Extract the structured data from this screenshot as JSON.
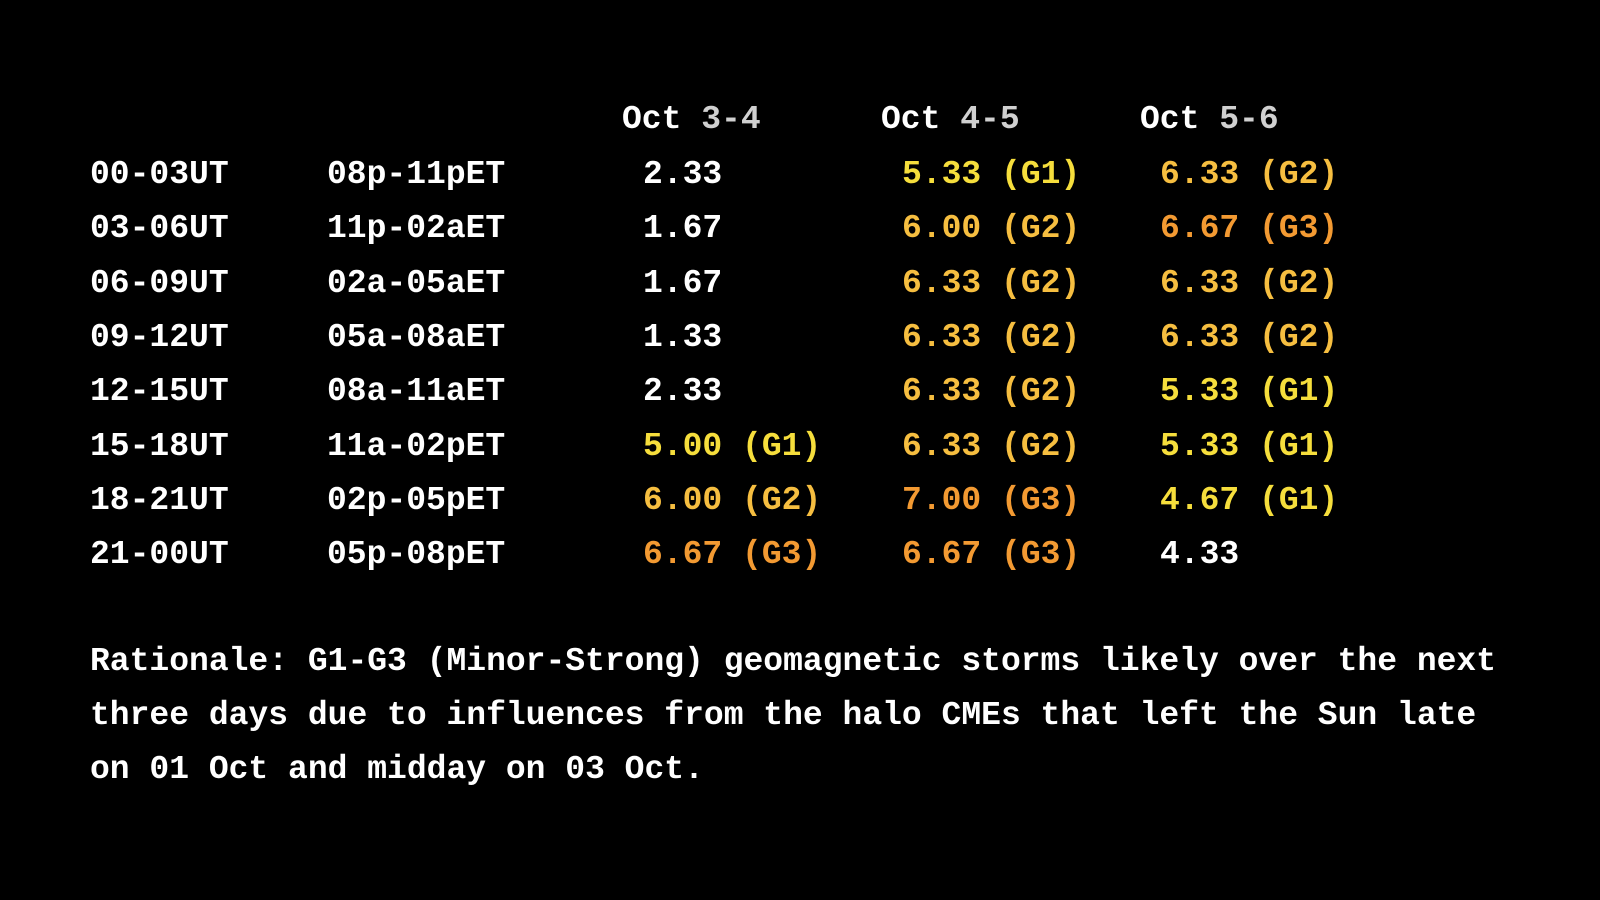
{
  "table": {
    "header": [
      {
        "month": "Oct",
        "days": "3-4"
      },
      {
        "month": "Oct",
        "days": "4-5"
      },
      {
        "month": "Oct",
        "days": "5-6"
      }
    ],
    "level_colors": {
      "none": "#ffffff",
      "G1": "#f6de3c",
      "G2": "#f6be40",
      "G3": "#f39a32"
    },
    "rows": [
      {
        "ut": "00-03UT",
        "et": "08p-11pET",
        "cells": [
          {
            "value": "2.33"
          },
          {
            "value": "5.33",
            "level": "G1",
            "label": "(G1)"
          },
          {
            "value": "6.33",
            "level": "G2",
            "label": "(G2)"
          }
        ]
      },
      {
        "ut": "03-06UT",
        "et": "11p-02aET",
        "cells": [
          {
            "value": "1.67"
          },
          {
            "value": "6.00",
            "level": "G2",
            "label": "(G2)"
          },
          {
            "value": "6.67",
            "level": "G3",
            "label": "(G3)"
          }
        ]
      },
      {
        "ut": "06-09UT",
        "et": "02a-05aET",
        "cells": [
          {
            "value": "1.67"
          },
          {
            "value": "6.33",
            "level": "G2",
            "label": "(G2)"
          },
          {
            "value": "6.33",
            "level": "G2",
            "label": "(G2)"
          }
        ]
      },
      {
        "ut": "09-12UT",
        "et": "05a-08aET",
        "cells": [
          {
            "value": "1.33"
          },
          {
            "value": "6.33",
            "level": "G2",
            "label": "(G2)"
          },
          {
            "value": "6.33",
            "level": "G2",
            "label": "(G2)"
          }
        ]
      },
      {
        "ut": "12-15UT",
        "et": "08a-11aET",
        "cells": [
          {
            "value": "2.33"
          },
          {
            "value": "6.33",
            "level": "G2",
            "label": "(G2)"
          },
          {
            "value": "5.33",
            "level": "G1",
            "label": "(G1)"
          }
        ]
      },
      {
        "ut": "15-18UT",
        "et": "11a-02pET",
        "cells": [
          {
            "value": "5.00",
            "level": "G1",
            "label": "(G1)"
          },
          {
            "value": "6.33",
            "level": "G2",
            "label": "(G2)"
          },
          {
            "value": "5.33",
            "level": "G1",
            "label": "(G1)"
          }
        ]
      },
      {
        "ut": "18-21UT",
        "et": "02p-05pET",
        "cells": [
          {
            "value": "6.00",
            "level": "G2",
            "label": "(G2)"
          },
          {
            "value": "7.00",
            "level": "G3",
            "label": "(G3)"
          },
          {
            "value": "4.67",
            "level": "G1",
            "label": "(G1)"
          }
        ]
      },
      {
        "ut": "21-00UT",
        "et": "05p-08pET",
        "cells": [
          {
            "value": "6.67",
            "level": "G3",
            "label": "(G3)"
          },
          {
            "value": "6.67",
            "level": "G3",
            "label": "(G3)"
          },
          {
            "value": "4.33"
          }
        ]
      }
    ]
  },
  "rationale": "Rationale: G1-G3 (Minor-Strong) geomagnetic storms likely over the next three days due to influences from the halo CMEs that left the Sun late on 01 Oct and midday on 03 Oct."
}
